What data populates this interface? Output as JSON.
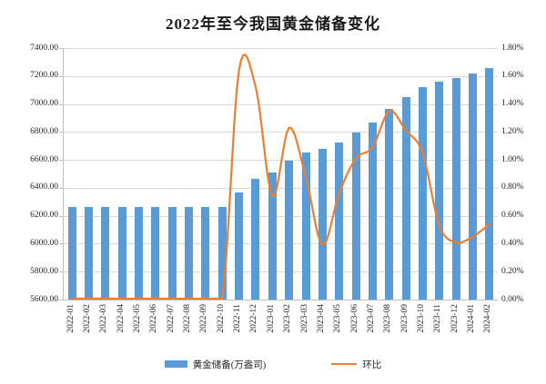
{
  "title": "2022年至今我国黄金储备变化",
  "colors": {
    "bar": "#5B9BD5",
    "line": "#ED7D31",
    "grid": "#D9D9D9",
    "axis_line": "#BFBFBF",
    "text": "#262626"
  },
  "legend": {
    "bar_label": "黄金储备(万盎司)",
    "line_label": "环比"
  },
  "chart_data": {
    "type": "combo_bar_line",
    "title": "2022年至今我国黄金储备变化",
    "categories": [
      "2022-01",
      "2022-02",
      "2022-03",
      "2022-04",
      "2022-05",
      "2022-06",
      "2022-07",
      "2022-08",
      "2022-09",
      "2022-10",
      "2022-11",
      "2022-12",
      "2023-01",
      "2023-02",
      "2023-03",
      "2023-04",
      "2023-05",
      "2023-06",
      "2023-07",
      "2023-08",
      "2023-09",
      "2023-10",
      "2023-11",
      "2023-12",
      "2024-01",
      "2024-02"
    ],
    "series": [
      {
        "name": "黄金储备(万盎司)",
        "type": "bar",
        "axis": "left",
        "values": [
          6264,
          6264,
          6264,
          6264,
          6264,
          6264,
          6264,
          6264,
          6264,
          6264,
          6367,
          6464,
          6512,
          6592,
          6650,
          6676,
          6727,
          6795,
          6869,
          6962,
          7046,
          7120,
          7158,
          7187,
          7219,
          7258
        ]
      },
      {
        "name": "环比",
        "type": "line",
        "axis": "right",
        "unit": "%",
        "values": [
          0.0,
          0.0,
          0.0,
          0.0,
          0.0,
          0.0,
          0.0,
          0.0,
          0.0,
          0.0,
          1.64,
          1.52,
          0.74,
          1.23,
          0.88,
          0.39,
          0.76,
          1.01,
          1.09,
          1.35,
          1.21,
          1.05,
          0.53,
          0.41,
          0.45,
          0.54
        ]
      }
    ],
    "left_axis": {
      "min": 5600,
      "max": 7400,
      "step": 200,
      "tick_labels": [
        "5600.00",
        "5800.00",
        "6000.00",
        "6200.00",
        "6400.00",
        "6600.00",
        "6800.00",
        "7000.00",
        "7200.00",
        "7400.00"
      ]
    },
    "right_axis": {
      "min": 0.0,
      "max": 1.8,
      "step": 0.2,
      "tick_labels": [
        "0.00%",
        "0.20%",
        "0.40%",
        "0.60%",
        "0.80%",
        "1.00%",
        "1.20%",
        "1.40%",
        "1.60%",
        "1.80%"
      ]
    },
    "grid": true,
    "legend_position": "bottom"
  }
}
